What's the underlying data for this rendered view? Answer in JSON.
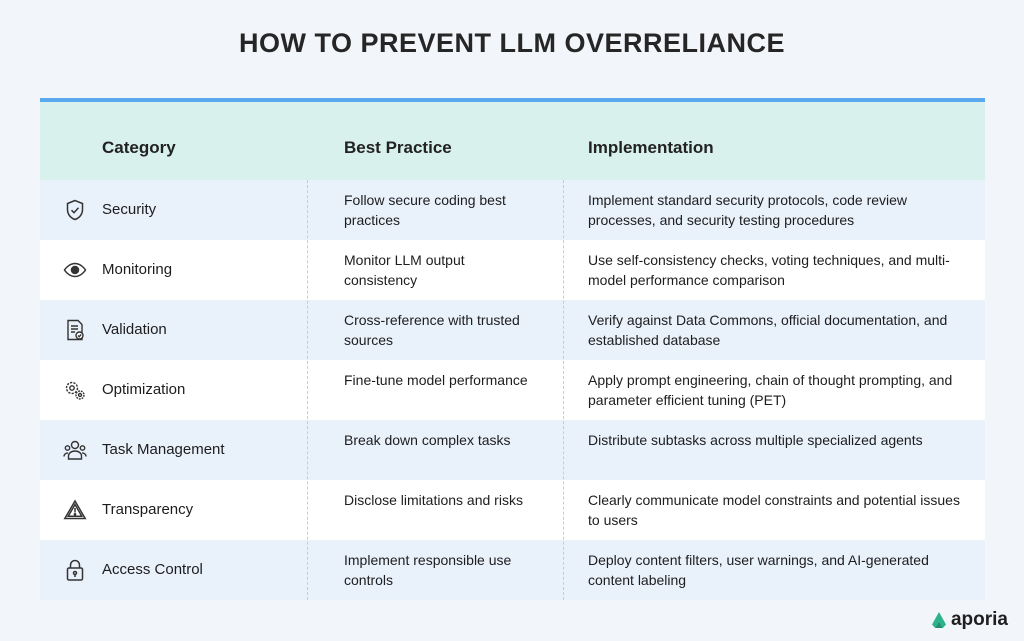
{
  "title": "HOW TO PREVENT LLM OVERRELIANCE",
  "columns": [
    "Category",
    "Best Practice",
    "Implementation"
  ],
  "rows": [
    {
      "icon": "shield-check-icon",
      "category": "Security",
      "practice": "Follow secure coding best practices",
      "implementation": "Implement standard security protocols, code review processes, and security testing procedures"
    },
    {
      "icon": "eye-icon",
      "category": "Monitoring",
      "practice": "Monitor LLM output consistency",
      "implementation": "Use self-consistency checks, voting techniques, and multi-model performance comparison"
    },
    {
      "icon": "document-check-icon",
      "category": "Validation",
      "practice": "Cross-reference with trusted sources",
      "implementation": "Verify against Data Commons, official documentation, and established database"
    },
    {
      "icon": "gears-icon",
      "category": "Optimization",
      "practice": "Fine-tune model performance",
      "implementation": "Apply prompt engineering, chain of thought prompting, and parameter efficient tuning (PET)"
    },
    {
      "icon": "users-icon",
      "category": "Task Management",
      "practice": "Break down complex tasks",
      "implementation": "Distribute subtasks across multiple specialized agents"
    },
    {
      "icon": "warning-icon",
      "category": "Transparency",
      "practice": "Disclose limitations and risks",
      "implementation": "Clearly communicate model constraints and potential issues to users"
    },
    {
      "icon": "lock-icon",
      "category": "Access Control",
      "practice": "Implement responsible use controls",
      "implementation": "Deploy content filters, user warnings, and AI-generated content labeling"
    }
  ],
  "logo": "aporia",
  "colors": {
    "accent": "#5aa8ee",
    "header_bg": "#d8f1ec",
    "row_shade": "#e9f1fb",
    "logo": "#2bb389"
  }
}
